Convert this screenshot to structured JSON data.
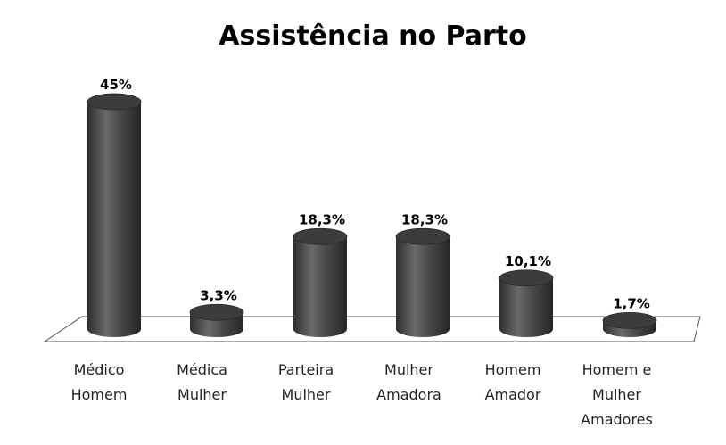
{
  "chart_data": {
    "type": "bar",
    "title": "Assistência no Parto",
    "categories": [
      [
        "Médico",
        "Homem"
      ],
      [
        "Médica",
        "Mulher"
      ],
      [
        "Parteira",
        "Mulher"
      ],
      [
        "Mulher",
        "Amadora"
      ],
      [
        "Homem",
        "Amador"
      ],
      [
        "Homem e",
        "Mulher",
        "Amadores"
      ]
    ],
    "values": [
      45,
      3.3,
      18.3,
      18.3,
      10.1,
      1.7
    ],
    "data_labels": [
      "45%",
      "3,3%",
      "18,3%",
      "18,3%",
      "10,1%",
      "1,7%"
    ],
    "ylim": [
      0,
      45
    ],
    "grid": false,
    "legend": "none",
    "style": "3d-cylinder",
    "bar_color": "#4a4a4a"
  }
}
